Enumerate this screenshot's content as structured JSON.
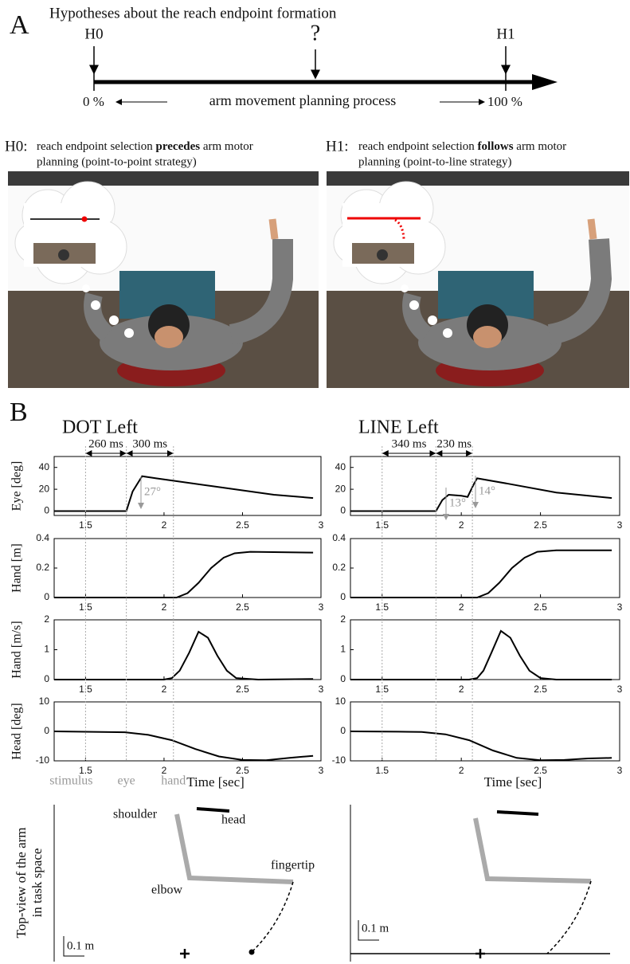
{
  "panel_a": {
    "label": "A",
    "title": "Hypotheses about the reach endpoint formation",
    "markers": [
      "H0",
      "?",
      "H1"
    ],
    "start": "0 %",
    "process": "arm movement planning process",
    "end": "100 %"
  },
  "hypotheses": [
    {
      "label": "H0:",
      "pre": "reach endpoint selection ",
      "emphasis": "precedes",
      "post": " arm motor",
      "line2": "planning (point-to-point strategy)"
    },
    {
      "label": "H1:",
      "pre": "reach endpoint selection ",
      "emphasis": "follows",
      "post": " arm motor",
      "line2": "planning (point-to-line strategy)"
    }
  ],
  "panel_b": {
    "label": "B",
    "columns": [
      {
        "title": "DOT Left",
        "intervals": [
          "260 ms",
          "300 ms"
        ],
        "events": [
          1.5,
          1.76,
          2.06
        ],
        "event_labels": [
          "stimulus",
          "eye",
          "hand"
        ],
        "annotations": [
          "27°"
        ]
      },
      {
        "title": "LINE Left",
        "intervals": [
          "340 ms",
          "230 ms"
        ],
        "events": [
          1.5,
          1.84,
          2.07
        ],
        "annotations": [
          "13°",
          "14°"
        ]
      }
    ]
  },
  "panel_c": {
    "ylabel": [
      "Top-view of the arm",
      "in task space"
    ],
    "labels": [
      "shoulder",
      "head",
      "elbow",
      "fingertip"
    ],
    "scales": [
      "0.1 m",
      "0.1 m"
    ]
  },
  "chart_data": [
    {
      "type": "line",
      "ylabel": "Eye [deg]",
      "x": [
        1.3,
        1.5,
        1.7,
        1.76,
        1.8,
        1.86,
        1.95,
        2.1,
        2.3,
        2.5,
        2.7,
        2.95
      ],
      "values": [
        0,
        0,
        0,
        0,
        18,
        32,
        30,
        27,
        23,
        19,
        15,
        12
      ],
      "xlim": [
        1.3,
        3
      ],
      "ylim": [
        -4,
        50
      ],
      "xticks": [
        1.5,
        2,
        2.5,
        3
      ],
      "yticks": [
        0,
        20,
        40
      ],
      "color": "#000000"
    },
    {
      "type": "line",
      "ylabel": "Hand [m]",
      "x": [
        1.3,
        2.0,
        2.08,
        2.15,
        2.22,
        2.3,
        2.38,
        2.45,
        2.55,
        2.95
      ],
      "values": [
        0,
        0,
        0,
        0.03,
        0.1,
        0.2,
        0.27,
        0.3,
        0.31,
        0.305
      ],
      "xlim": [
        1.3,
        3
      ],
      "ylim": [
        0,
        0.4
      ],
      "xticks": [
        1.5,
        2,
        2.5,
        3
      ],
      "yticks": [
        0,
        0.2,
        0.4
      ],
      "color": "#000000"
    },
    {
      "type": "line",
      "ylabel": "Hand [m/s]",
      "x": [
        1.3,
        2.0,
        2.05,
        2.1,
        2.16,
        2.22,
        2.28,
        2.34,
        2.4,
        2.46,
        2.6,
        2.95
      ],
      "values": [
        0,
        0,
        0.05,
        0.3,
        0.9,
        1.6,
        1.4,
        0.8,
        0.3,
        0.05,
        0,
        0.02
      ],
      "xlim": [
        1.3,
        3
      ],
      "ylim": [
        0,
        2
      ],
      "xticks": [
        1.5,
        2,
        2.5,
        3
      ],
      "yticks": [
        0,
        1,
        2
      ],
      "color": "#000000"
    },
    {
      "type": "line",
      "ylabel": "Head [deg]",
      "xlabel": "Time [sec]",
      "x": [
        1.3,
        1.6,
        1.75,
        1.9,
        2.05,
        2.2,
        2.35,
        2.5,
        2.65,
        2.8,
        2.95
      ],
      "values": [
        0,
        -0.2,
        -0.3,
        -1.2,
        -3,
        -6,
        -8.5,
        -9.7,
        -9.8,
        -9,
        -8.3
      ],
      "xlim": [
        1.3,
        3
      ],
      "ylim": [
        -10,
        10
      ],
      "xticks": [
        1.5,
        2,
        2.5,
        3
      ],
      "yticks": [
        10,
        0,
        -10
      ],
      "color": "#000000"
    },
    {
      "type": "line",
      "x": [
        1.3,
        1.5,
        1.8,
        1.84,
        1.88,
        1.92,
        2.0,
        2.04,
        2.08,
        2.1,
        2.3,
        2.6,
        2.95
      ],
      "values": [
        0,
        0,
        0,
        0,
        10,
        15,
        14,
        13,
        25,
        30,
        25,
        17,
        12
      ],
      "xlim": [
        1.3,
        3
      ],
      "ylim": [
        -4,
        50
      ],
      "xticks": [
        1.5,
        2,
        2.5,
        3
      ],
      "yticks": [
        0,
        20,
        40
      ],
      "color": "#000000"
    },
    {
      "type": "line",
      "x": [
        1.3,
        2.05,
        2.1,
        2.17,
        2.24,
        2.32,
        2.4,
        2.48,
        2.6,
        2.95
      ],
      "values": [
        0,
        0,
        0,
        0.03,
        0.1,
        0.2,
        0.27,
        0.31,
        0.32,
        0.32
      ],
      "xlim": [
        1.3,
        3
      ],
      "ylim": [
        0,
        0.4
      ],
      "xticks": [
        1.5,
        2,
        2.5,
        3
      ],
      "yticks": [
        0,
        0.2,
        0.4
      ],
      "color": "#000000"
    },
    {
      "type": "line",
      "x": [
        1.3,
        2.05,
        2.1,
        2.14,
        2.19,
        2.25,
        2.31,
        2.37,
        2.43,
        2.5,
        2.6,
        2.95
      ],
      "values": [
        0,
        0,
        0.05,
        0.3,
        0.9,
        1.63,
        1.4,
        0.8,
        0.3,
        0.05,
        0,
        0
      ],
      "xlim": [
        1.3,
        3
      ],
      "ylim": [
        0,
        2
      ],
      "xticks": [
        1.5,
        2,
        2.5,
        3
      ],
      "yticks": [
        0,
        1,
        2
      ],
      "color": "#000000"
    },
    {
      "type": "line",
      "xlabel": "Time [sec]",
      "x": [
        1.3,
        1.6,
        1.75,
        1.9,
        2.05,
        2.2,
        2.35,
        2.5,
        2.65,
        2.8,
        2.95
      ],
      "values": [
        0,
        -0.1,
        -0.2,
        -1,
        -3,
        -6.5,
        -9,
        -9.8,
        -9.7,
        -9.2,
        -9
      ],
      "xlim": [
        1.3,
        3
      ],
      "ylim": [
        -10,
        10
      ],
      "xticks": [
        1.5,
        2,
        2.5,
        3
      ],
      "yticks": [
        10,
        0,
        -10
      ],
      "color": "#000000"
    }
  ]
}
